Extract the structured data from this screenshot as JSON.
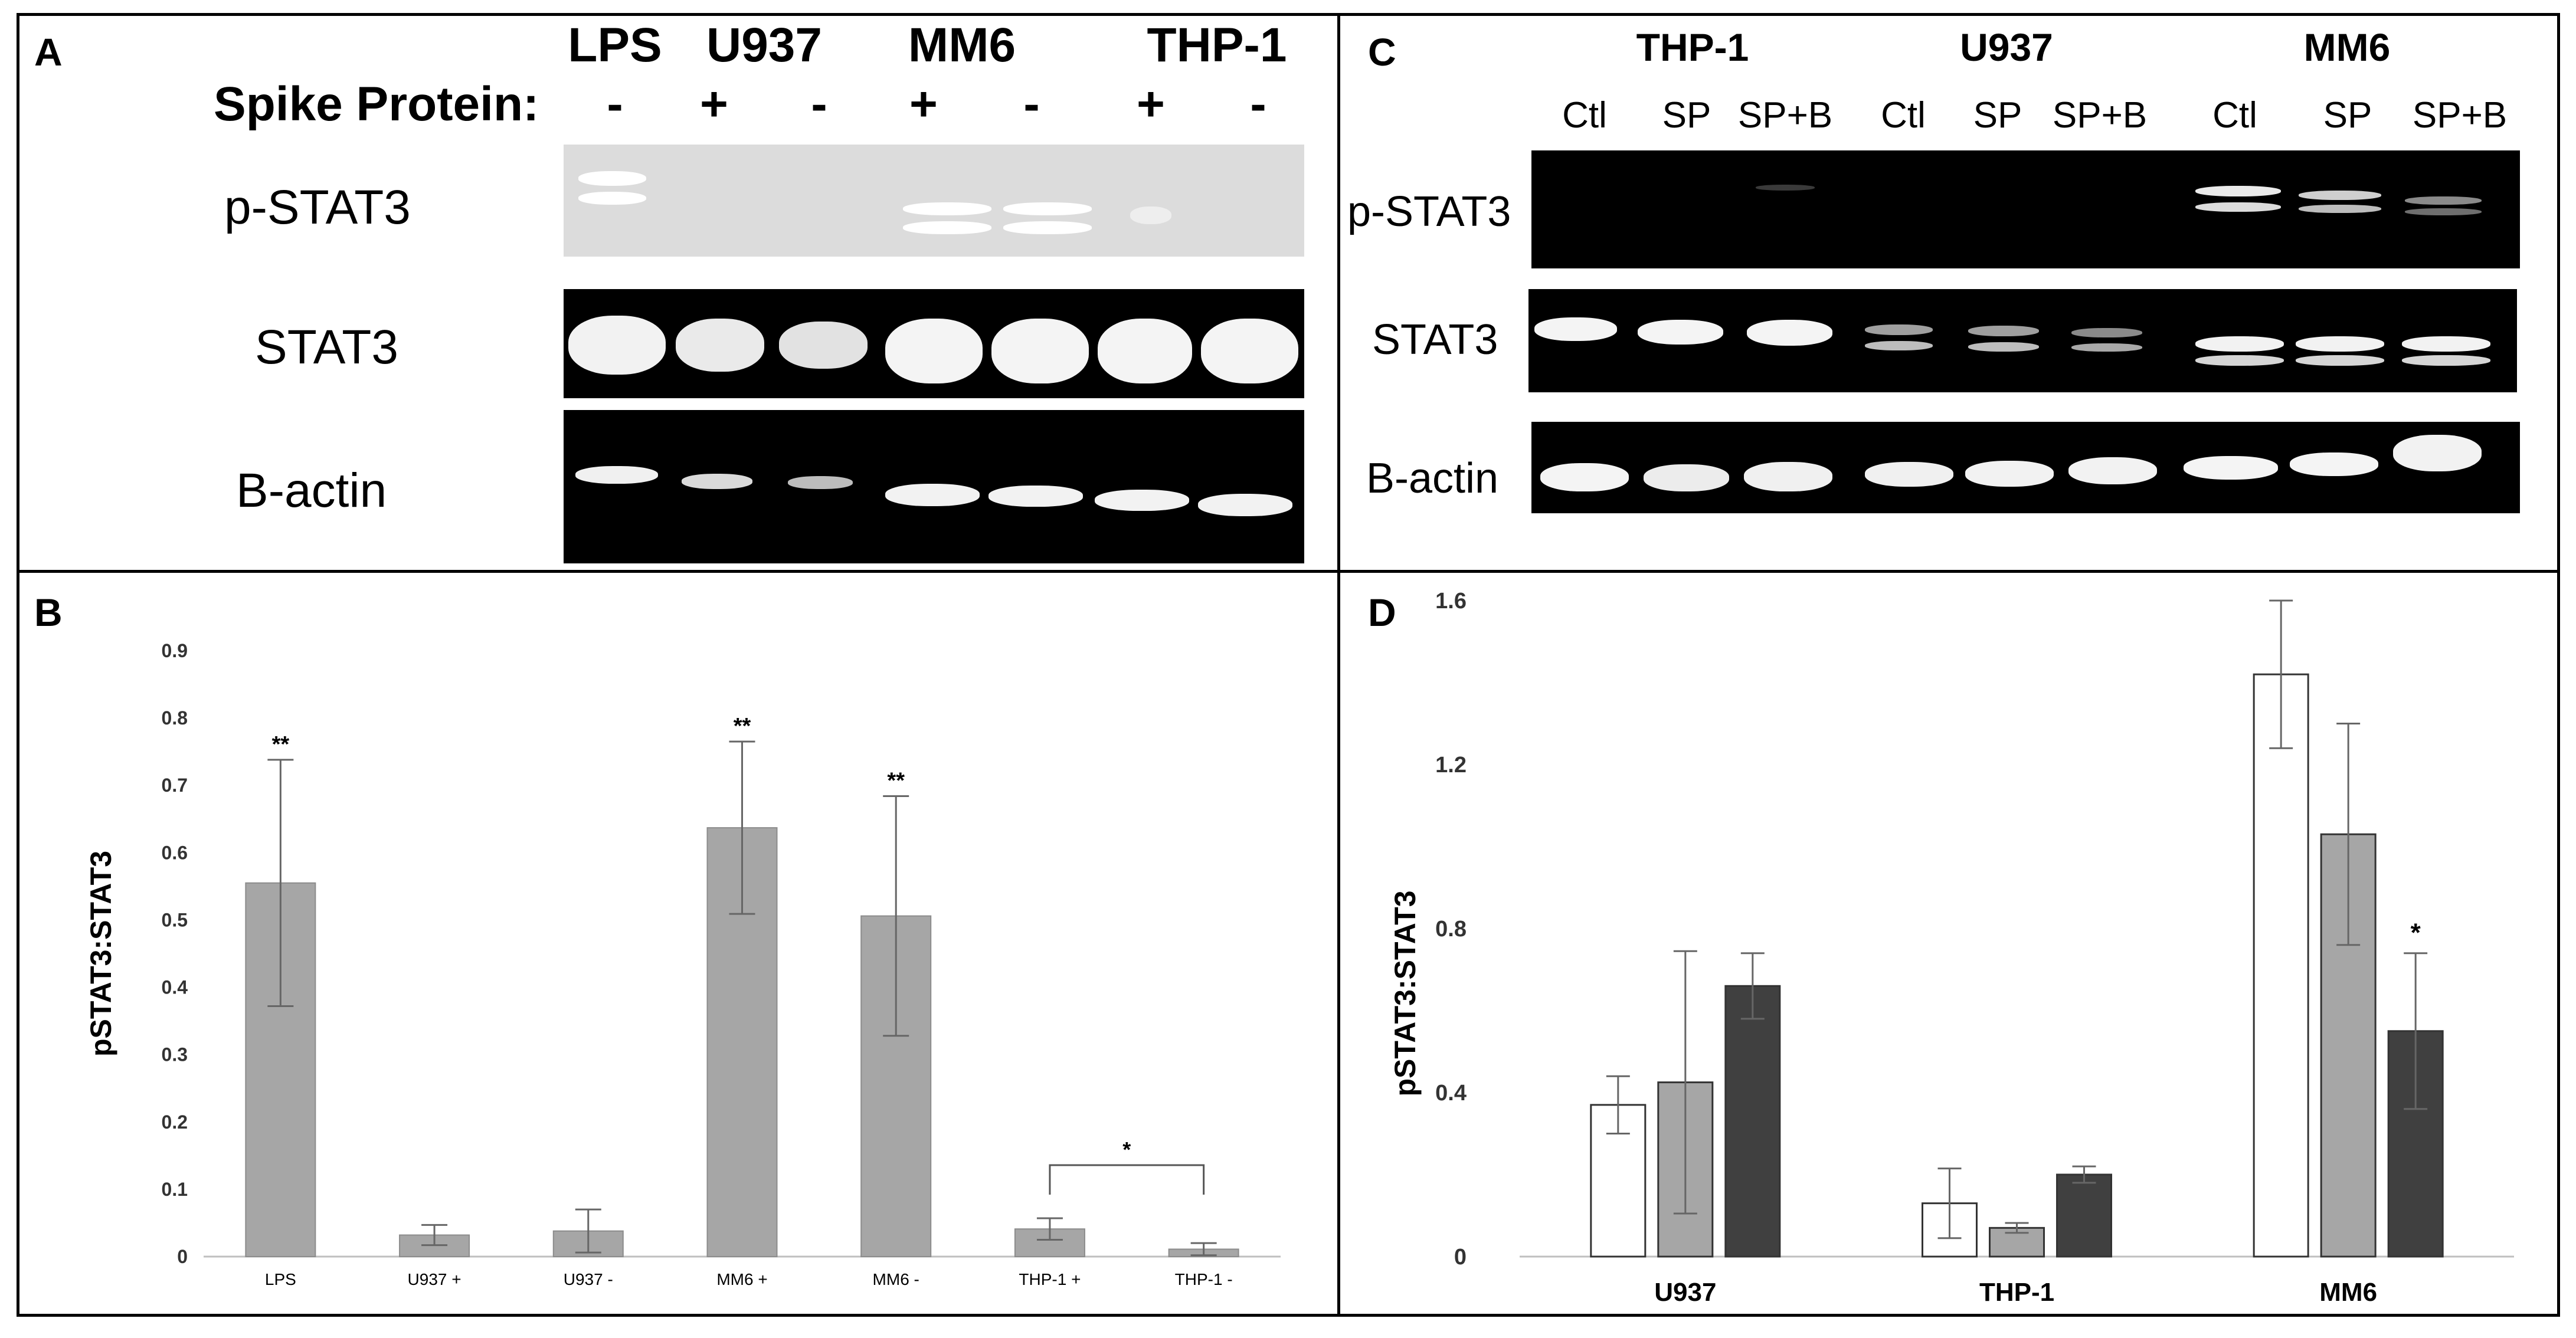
{
  "panels": {
    "A": {
      "letter": "A",
      "cell_lines": [
        "LPS",
        "U937",
        "MM6",
        "THP-1"
      ],
      "spike_label": "Spike Protein:",
      "spike_signs": [
        "-",
        "+",
        "-",
        "+",
        "-",
        "+",
        "-"
      ],
      "rows": [
        "p-STAT3",
        "STAT3",
        "B-actin"
      ]
    },
    "B": {
      "letter": "B",
      "chart_data": {
        "type": "bar",
        "categories": [
          "LPS",
          "U937 +",
          "U937 -",
          "MM6 +",
          "MM6 -",
          "THP-1 +",
          "THP-1 -"
        ],
        "values": [
          0.555,
          0.032,
          0.038,
          0.637,
          0.506,
          0.041,
          0.011
        ],
        "errors": [
          0.183,
          0.015,
          0.032,
          0.128,
          0.178,
          0.016,
          0.009
        ],
        "significance": [
          "**",
          "",
          "",
          "**",
          "**",
          "",
          ""
        ],
        "bracket": {
          "from": "THP-1 +",
          "to": "THP-1 -",
          "label": "*"
        },
        "ylabel": "pSTAT3:STAT3",
        "xlabel": "",
        "ylim": [
          0,
          0.9
        ],
        "yticks": [
          "0",
          "0.1",
          "0.2",
          "0.3",
          "0.4",
          "0.5",
          "0.6",
          "0.7",
          "0.8",
          "0.9"
        ],
        "bar_color": "#a6a6a6",
        "grid": false
      }
    },
    "C": {
      "letter": "C",
      "cell_lines": [
        "THP-1",
        "U937",
        "MM6"
      ],
      "lanes": [
        "Ctl",
        "SP",
        "SP+B",
        "Ctl",
        "SP",
        "SP+B",
        "Ctl",
        "SP",
        "SP+B"
      ],
      "rows": [
        "p-STAT3",
        "STAT3",
        "B-actin"
      ]
    },
    "D": {
      "letter": "D",
      "chart_data": {
        "type": "bar",
        "categories": [
          "U937",
          "THP-1",
          "MM6"
        ],
        "series": [
          {
            "values": [
              0.37,
              0.13,
              1.42
            ],
            "errors": [
              0.07,
              0.085,
              0.18
            ],
            "color": "#ffffff"
          },
          {
            "values": [
              0.425,
              0.07,
              1.03
            ],
            "errors": [
              0.32,
              0.012,
              0.27
            ],
            "color": "#a6a6a6"
          },
          {
            "values": [
              0.66,
              0.2,
              0.55
            ],
            "errors": [
              0.08,
              0.02,
              0.19
            ],
            "color": "#404040"
          }
        ],
        "significance": [
          [
            "",
            "",
            ""
          ],
          [
            "",
            "",
            ""
          ],
          [
            "",
            "",
            "*"
          ]
        ],
        "ylabel": "pSTAT3:STAT3",
        "xlabel": "",
        "ylim": [
          0,
          1.6
        ],
        "yticks": [
          "0",
          "0.4",
          "0.8",
          "1.2",
          "1.6"
        ],
        "grid": false
      }
    }
  }
}
